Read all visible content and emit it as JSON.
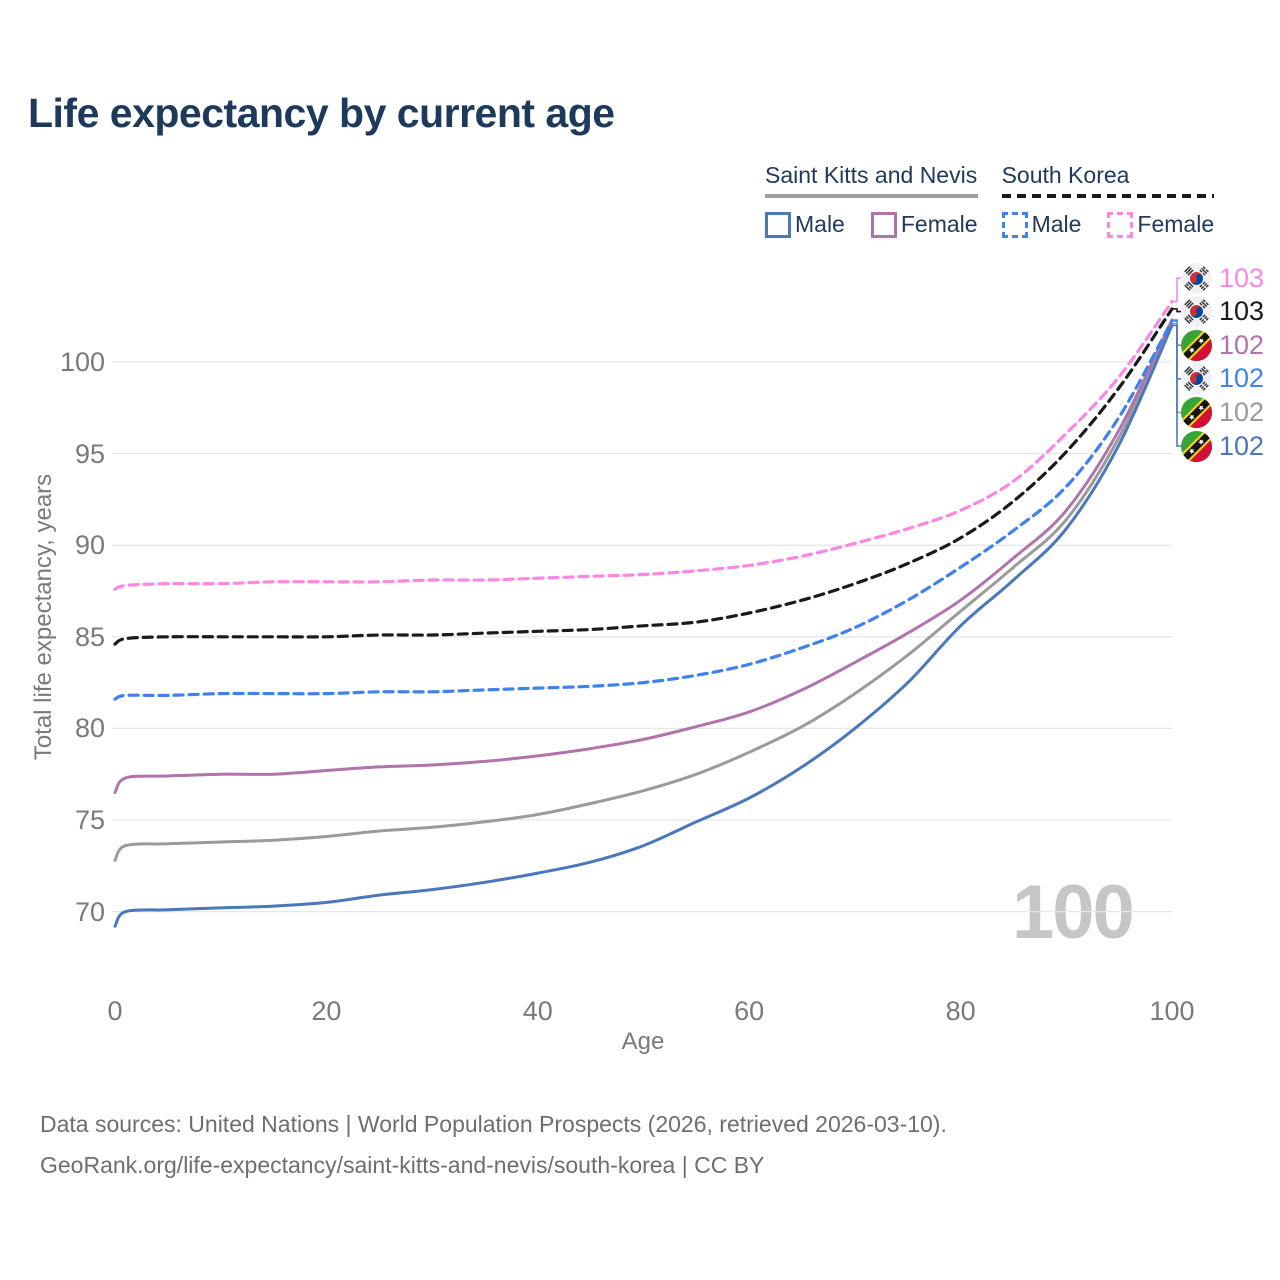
{
  "title": "Life expectancy by current age",
  "legend": {
    "groups": [
      {
        "label": "Saint Kitts and Nevis",
        "line_style": "solid",
        "line_color": "#9e9e9e",
        "items": [
          {
            "label": "Male",
            "color": "#4a78ba",
            "style": "solid"
          },
          {
            "label": "Female",
            "color": "#b173ae",
            "style": "solid"
          }
        ]
      },
      {
        "label": "South Korea",
        "line_style": "dashed",
        "line_color": "#1a1a1a",
        "items": [
          {
            "label": "Male",
            "color": "#3f82ed",
            "style": "dashed"
          },
          {
            "label": "Female",
            "color": "#fc86e2",
            "style": "dashed"
          }
        ]
      }
    ]
  },
  "chart_data": {
    "type": "line",
    "title": "Life expectancy by current age",
    "xlabel": "Age",
    "ylabel": "Total life expectancy, years",
    "x_ticks": [
      0,
      20,
      40,
      60,
      80,
      100
    ],
    "y_ticks": [
      70,
      75,
      80,
      85,
      90,
      95,
      100
    ],
    "xlim": [
      0,
      100
    ],
    "ylim": [
      67.5,
      104
    ],
    "grid": "horizontal gridlines only",
    "legend_position": "top-right",
    "watermark": "100",
    "ages": [
      0,
      1,
      5,
      10,
      15,
      20,
      25,
      30,
      35,
      40,
      45,
      50,
      55,
      60,
      65,
      70,
      75,
      80,
      85,
      90,
      95,
      100
    ],
    "series": [
      {
        "name": "South Korea Female",
        "country": "South Korea",
        "group": "Female",
        "color": "#fc86e2",
        "dash": true,
        "flag": "south-korea",
        "end_label": "103",
        "values": [
          87.6,
          87.8,
          87.9,
          87.9,
          88.0,
          88.0,
          88.0,
          88.1,
          88.1,
          88.2,
          88.3,
          88.4,
          88.6,
          88.9,
          89.4,
          90.1,
          90.9,
          91.9,
          93.5,
          96.1,
          99.2,
          103.3
        ]
      },
      {
        "name": "South Korea",
        "country": "South Korea",
        "group": "Both sexes",
        "color": "#1a1a1a",
        "dash": true,
        "flag": "south-korea",
        "end_label": "103",
        "values": [
          84.6,
          84.9,
          85.0,
          85.0,
          85.0,
          85.0,
          85.1,
          85.1,
          85.2,
          85.3,
          85.4,
          85.6,
          85.8,
          86.3,
          87.0,
          87.9,
          89.0,
          90.4,
          92.4,
          95.1,
          98.6,
          102.9
        ]
      },
      {
        "name": "Saint Kitts and Nevis Female",
        "country": "Saint Kitts and Nevis",
        "group": "Female",
        "color": "#b173ae",
        "dash": false,
        "flag": "saint-kitts-and-nevis",
        "end_label": "102",
        "values": [
          76.5,
          77.3,
          77.4,
          77.5,
          77.5,
          77.7,
          77.9,
          78.0,
          78.2,
          78.5,
          78.9,
          79.4,
          80.1,
          80.9,
          82.1,
          83.6,
          85.2,
          87.0,
          89.3,
          91.9,
          96.3,
          102.3
        ]
      },
      {
        "name": "South Korea Male",
        "country": "South Korea",
        "group": "Male",
        "color": "#3f82ed",
        "dash": true,
        "flag": "south-korea",
        "end_label": "102",
        "values": [
          81.6,
          81.8,
          81.8,
          81.9,
          81.9,
          81.9,
          82.0,
          82.0,
          82.1,
          82.2,
          82.3,
          82.5,
          82.9,
          83.5,
          84.4,
          85.5,
          87.0,
          88.8,
          90.8,
          93.2,
          97.0,
          102.25
        ]
      },
      {
        "name": "Saint Kitts and Nevis",
        "country": "Saint Kitts and Nevis",
        "group": "Both sexes",
        "color": "#9b9b9b",
        "dash": false,
        "flag": "saint-kitts-and-nevis",
        "end_label": "102",
        "values": [
          72.8,
          73.6,
          73.7,
          73.8,
          73.9,
          74.1,
          74.4,
          74.6,
          74.9,
          75.3,
          75.9,
          76.6,
          77.5,
          78.7,
          80.1,
          81.9,
          84.0,
          86.4,
          88.8,
          91.4,
          95.9,
          102.1
        ]
      },
      {
        "name": "Saint Kitts and Nevis Male",
        "country": "Saint Kitts and Nevis",
        "group": "Male",
        "color": "#4a78ba",
        "dash": false,
        "flag": "saint-kitts-and-nevis",
        "end_label": "102",
        "values": [
          69.2,
          70.0,
          70.1,
          70.2,
          70.3,
          70.5,
          70.9,
          71.2,
          71.6,
          72.1,
          72.7,
          73.6,
          74.9,
          76.2,
          77.9,
          80.0,
          82.5,
          85.6,
          88.1,
          90.9,
          95.5,
          102.0
        ]
      }
    ]
  },
  "footer": {
    "line1": "Data sources: United Nations | World Population Prospects (2026, retrieved 2026-03-10).",
    "line2": "GeoRank.org/life-expectancy/saint-kitts-and-nevis/south-korea | CC BY"
  }
}
